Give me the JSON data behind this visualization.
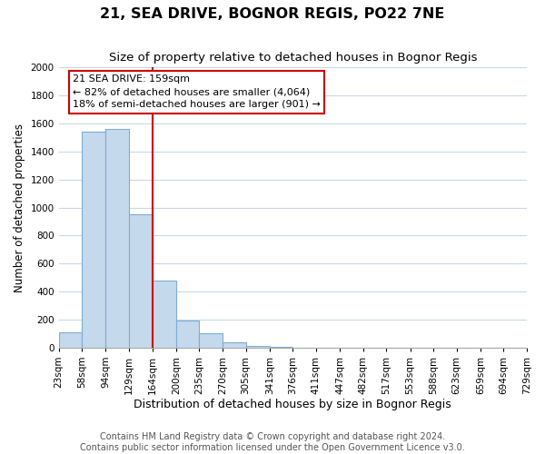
{
  "title": "21, SEA DRIVE, BOGNOR REGIS, PO22 7NE",
  "subtitle": "Size of property relative to detached houses in Bognor Regis",
  "xlabel": "Distribution of detached houses by size in Bognor Regis",
  "ylabel": "Number of detached properties",
  "bar_edges": [
    23,
    58,
    94,
    129,
    164,
    200,
    235,
    270,
    305,
    341,
    376,
    411,
    447,
    482,
    517,
    553,
    588,
    623,
    659,
    694,
    729
  ],
  "bar_heights": [
    110,
    1540,
    1565,
    950,
    480,
    190,
    100,
    35,
    10,
    5,
    0,
    0,
    0,
    0,
    0,
    0,
    0,
    0,
    0,
    0
  ],
  "bar_color": "#c5d9ec",
  "bar_edgecolor": "#7dadd4",
  "vline_x": 164,
  "vline_color": "#cc0000",
  "ylim": [
    0,
    2000
  ],
  "yticks": [
    0,
    200,
    400,
    600,
    800,
    1000,
    1200,
    1400,
    1600,
    1800,
    2000
  ],
  "annotation_text": "21 SEA DRIVE: 159sqm\n← 82% of detached houses are smaller (4,064)\n18% of semi-detached houses are larger (901) →",
  "annotation_box_edgecolor": "#cc0000",
  "annotation_box_facecolor": "#ffffff",
  "footer_line1": "Contains HM Land Registry data © Crown copyright and database right 2024.",
  "footer_line2": "Contains public sector information licensed under the Open Government Licence v3.0.",
  "background_color": "#ffffff",
  "grid_color": "#c8d8ea",
  "title_fontsize": 11.5,
  "subtitle_fontsize": 9.5,
  "xlabel_fontsize": 9,
  "ylabel_fontsize": 8.5,
  "tick_fontsize": 7.5,
  "annotation_fontsize": 8,
  "footer_fontsize": 7
}
